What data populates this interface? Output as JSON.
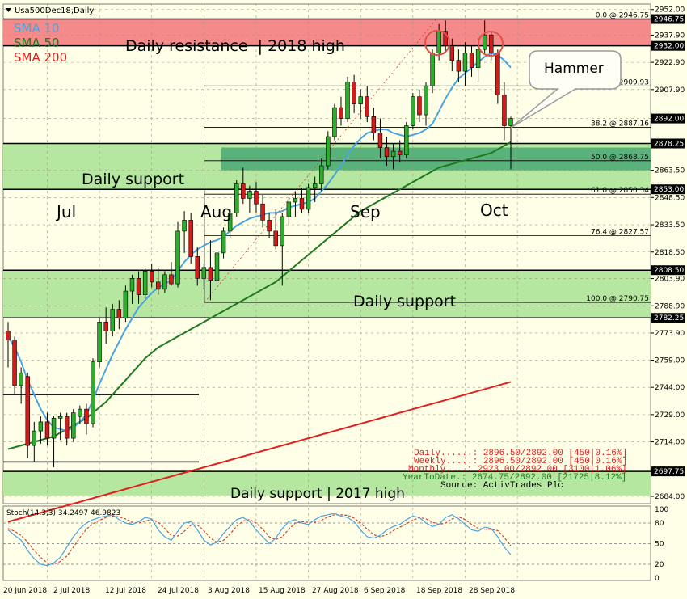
{
  "window": {
    "symbol": "Usa500Dec18,Daily"
  },
  "indicators": [
    {
      "label": "SMA 10",
      "color": "#4aa3df"
    },
    {
      "label": "SMA 50",
      "color": "#1f7a1f"
    },
    {
      "label": "SMA 200",
      "color": "#e02020"
    }
  ],
  "zones": {
    "resistance": {
      "label": "Daily resistance  | 2018 high",
      "from": 2932.0,
      "to": 2946.75,
      "color": "#f58a8a"
    },
    "support_aug": {
      "label": "Daily support",
      "from": 2853.0,
      "to": 2878.25,
      "color": "#b6e7a0"
    },
    "support_jul": {
      "label": "Daily support",
      "from": 2782.25,
      "to": 2808.5,
      "color": "#b6e7a0"
    },
    "support_2017": {
      "label": "Daily support | 2017 high",
      "from": 2684.5,
      "to": 2697.75,
      "color": "#b6e7a0"
    },
    "dark_support": {
      "from": 2863.5,
      "to": 2876.0,
      "color": "#4aa874"
    }
  },
  "month_labels": [
    "Jul",
    "Aug",
    "Sep",
    "Oct"
  ],
  "annotation": {
    "callout": "Hammer"
  },
  "fib_levels": [
    {
      "label": "0.0 @ 2946.75",
      "value": 2946.75
    },
    {
      "label": "23.6 @ 2909.93",
      "value": 2909.93
    },
    {
      "label": "38.2 @ 2887.16",
      "value": 2887.16
    },
    {
      "label": "50.0 @ 2868.75",
      "value": 2868.75
    },
    {
      "label": "61.8 @ 2850.34",
      "value": 2850.34
    },
    {
      "label": "76.4 @ 2827.57",
      "value": 2827.57
    },
    {
      "label": "100.0 @ 2790.75",
      "value": 2790.75
    }
  ],
  "stats": {
    "lines": [
      "Daily......: 2896.50/2892.00 [450|0.16%]",
      "Weekly.....: 2896.50/2892.00 [450|0.16%]",
      "Monthly....: 2923.00/2892.00 [3100|1.06%]",
      "YearToDate.: 2674.75/2892.00 [21725|8.12%]"
    ],
    "source": "Source: ActivTrades Plc"
  },
  "price_axis": {
    "ticks": [
      "2952.00",
      "2937.90",
      "2922.90",
      "2907.90",
      "2892.00",
      "2878.25",
      "2863.50",
      "2853.00",
      "2848.50",
      "2833.50",
      "2818.50",
      "2808.50",
      "2803.90",
      "2788.90",
      "2782.25",
      "2773.90",
      "2759.00",
      "2744.00",
      "2729.00",
      "2714.00",
      "2697.75",
      "2684.00"
    ],
    "highlight": [
      {
        "label": "2946.75",
        "value": 2946.75,
        "color": "#000000"
      },
      {
        "label": "2932.00",
        "value": 2932.0,
        "color": "#000000"
      },
      {
        "label": "2892.00",
        "value": 2892.0,
        "color": "#000000"
      },
      {
        "label": "2878.25",
        "value": 2878.25,
        "color": "#000000"
      },
      {
        "label": "2853.00",
        "value": 2853.0,
        "color": "#000000"
      },
      {
        "label": "2808.50",
        "value": 2808.5,
        "color": "#000000"
      },
      {
        "label": "2782.25",
        "value": 2782.25,
        "color": "#000000"
      },
      {
        "label": "2697.75",
        "value": 2697.75,
        "color": "#000000"
      }
    ]
  },
  "oscillator": {
    "label": "Stoch(14,3,3) 34.2497 46.9823",
    "levels": [
      "100",
      "80",
      "50",
      "20",
      "0"
    ]
  },
  "time_axis": [
    "20 Jun 2018",
    "2 Jul 2018",
    "12 Jul 2018",
    "24 Jul 2018",
    "3 Aug 2018",
    "15 Aug 2018",
    "27 Aug 2018",
    "6 Sep 2018",
    "18 Sep 2018",
    "28 Sep 2018"
  ],
  "chart_data": {
    "type": "candlestick",
    "ylim": [
      2680,
      2955
    ],
    "candles": [
      [
        2775,
        2780,
        2755,
        2770
      ],
      [
        2770,
        2772,
        2740,
        2745
      ],
      [
        2745,
        2755,
        2735,
        2752
      ],
      [
        2750,
        2752,
        2705,
        2712
      ],
      [
        2712,
        2725,
        2703,
        2720
      ],
      [
        2720,
        2728,
        2713,
        2725
      ],
      [
        2725,
        2730,
        2712,
        2716
      ],
      [
        2716,
        2728,
        2700,
        2727
      ],
      [
        2727,
        2730,
        2715,
        2728
      ],
      [
        2728,
        2730,
        2712,
        2716
      ],
      [
        2716,
        2732,
        2714,
        2730
      ],
      [
        2728,
        2734,
        2724,
        2732
      ],
      [
        2732,
        2735,
        2718,
        2724
      ],
      [
        2724,
        2760,
        2722,
        2758
      ],
      [
        2758,
        2782,
        2755,
        2780
      ],
      [
        2780,
        2788,
        2768,
        2775
      ],
      [
        2775,
        2790,
        2772,
        2787
      ],
      [
        2787,
        2792,
        2776,
        2782
      ],
      [
        2782,
        2800,
        2780,
        2797
      ],
      [
        2797,
        2806,
        2790,
        2804
      ],
      [
        2804,
        2808,
        2790,
        2795
      ],
      [
        2795,
        2810,
        2793,
        2808
      ],
      [
        2808,
        2812,
        2799,
        2802
      ],
      [
        2802,
        2810,
        2795,
        2798
      ],
      [
        2798,
        2808,
        2796,
        2806
      ],
      [
        2806,
        2813,
        2800,
        2801
      ],
      [
        2801,
        2835,
        2799,
        2830
      ],
      [
        2830,
        2841,
        2818,
        2836
      ],
      [
        2836,
        2840,
        2812,
        2816
      ],
      [
        2816,
        2821,
        2800,
        2804
      ],
      [
        2804,
        2812,
        2798,
        2810
      ],
      [
        2810,
        2825,
        2792,
        2803
      ],
      [
        2803,
        2820,
        2801,
        2818
      ],
      [
        2818,
        2832,
        2815,
        2830
      ],
      [
        2830,
        2842,
        2826,
        2840
      ],
      [
        2840,
        2858,
        2838,
        2856
      ],
      [
        2856,
        2865,
        2845,
        2848
      ],
      [
        2848,
        2855,
        2840,
        2852
      ],
      [
        2852,
        2857,
        2840,
        2845
      ],
      [
        2845,
        2850,
        2832,
        2836
      ],
      [
        2836,
        2840,
        2826,
        2830
      ],
      [
        2830,
        2842,
        2820,
        2822
      ],
      [
        2822,
        2840,
        2800,
        2838
      ],
      [
        2838,
        2848,
        2834,
        2846
      ],
      [
        2846,
        2852,
        2838,
        2848
      ],
      [
        2848,
        2854,
        2840,
        2842
      ],
      [
        2842,
        2856,
        2840,
        2854
      ],
      [
        2854,
        2860,
        2846,
        2856
      ],
      [
        2856,
        2870,
        2852,
        2866
      ],
      [
        2866,
        2885,
        2864,
        2882
      ],
      [
        2882,
        2900,
        2880,
        2898
      ],
      [
        2898,
        2904,
        2888,
        2892
      ],
      [
        2892,
        2915,
        2890,
        2912
      ],
      [
        2912,
        2916,
        2895,
        2900
      ],
      [
        2900,
        2908,
        2892,
        2904
      ],
      [
        2904,
        2910,
        2890,
        2893
      ],
      [
        2893,
        2898,
        2880,
        2884
      ],
      [
        2884,
        2892,
        2870,
        2876
      ],
      [
        2876,
        2882,
        2866,
        2871
      ],
      [
        2871,
        2878,
        2864,
        2874
      ],
      [
        2874,
        2880,
        2868,
        2872
      ],
      [
        2872,
        2890,
        2870,
        2888
      ],
      [
        2888,
        2906,
        2886,
        2904
      ],
      [
        2904,
        2908,
        2890,
        2894
      ],
      [
        2894,
        2912,
        2888,
        2910
      ],
      [
        2910,
        2930,
        2906,
        2928
      ],
      [
        2928,
        2944,
        2924,
        2940
      ],
      [
        2940,
        2946,
        2928,
        2932
      ],
      [
        2932,
        2936,
        2918,
        2924
      ],
      [
        2924,
        2930,
        2912,
        2918
      ],
      [
        2918,
        2934,
        2910,
        2928
      ],
      [
        2928,
        2932,
        2915,
        2920
      ],
      [
        2920,
        2936,
        2912,
        2930
      ],
      [
        2930,
        2946,
        2928,
        2938
      ],
      [
        2938,
        2940,
        2924,
        2928
      ],
      [
        2928,
        2930,
        2900,
        2905
      ],
      [
        2905,
        2912,
        2880,
        2888
      ],
      [
        2888,
        2893,
        2864,
        2892
      ]
    ],
    "sma10": [
      2772,
      2766,
      2758,
      2748,
      2740,
      2732,
      2726,
      2722,
      2721,
      2720,
      2722,
      2725,
      2729,
      2737,
      2746,
      2754,
      2762,
      2769,
      2776,
      2782,
      2788,
      2792,
      2796,
      2799,
      2801,
      2803,
      2808,
      2813,
      2817,
      2820,
      2822,
      2824,
      2825,
      2827,
      2830,
      2833,
      2835,
      2837,
      2838,
      2839,
      2840,
      2840,
      2841,
      2843,
      2844,
      2845,
      2846,
      2848,
      2852,
      2856,
      2861,
      2866,
      2872,
      2877,
      2881,
      2884,
      2885,
      2886,
      2886,
      2884,
      2883,
      2882,
      2883,
      2884,
      2886,
      2889,
      2896,
      2903,
      2909,
      2914,
      2917,
      2920,
      2923,
      2926,
      2928,
      2927,
      2924,
      2920
    ],
    "sma50": [
      2710,
      2711,
      2712,
      2713,
      2714,
      2715,
      2716,
      2717,
      2719,
      2721,
      2723,
      2725,
      2727,
      2730,
      2733,
      2736,
      2740,
      2744,
      2748,
      2752,
      2756,
      2760,
      2763,
      2766,
      2768,
      2770,
      2772,
      2774,
      2776,
      2778,
      2780,
      2782,
      2784,
      2786,
      2788,
      2790,
      2792,
      2794,
      2796,
      2798,
      2800,
      2802,
      2805,
      2808,
      2811,
      2814,
      2817,
      2820,
      2823,
      2826,
      2829,
      2832,
      2835,
      2838,
      2841,
      2843,
      2845,
      2847,
      2849,
      2851,
      2853,
      2855,
      2857,
      2859,
      2861,
      2863,
      2865,
      2866,
      2867,
      2868,
      2869,
      2870,
      2871,
      2872,
      2873,
      2875,
      2877,
      2879
    ],
    "sma200": [
      2670,
      2671,
      2672,
      2673,
      2674,
      2675,
      2676,
      2677,
      2678,
      2679,
      2680,
      2681,
      2682,
      2683,
      2684,
      2685,
      2686,
      2687,
      2688,
      2689,
      2690,
      2691,
      2692,
      2693,
      2694,
      2695,
      2696,
      2697,
      2698,
      2699,
      2700,
      2701,
      2702,
      2703,
      2704,
      2705,
      2706,
      2707,
      2708,
      2709,
      2710,
      2711,
      2712,
      2713,
      2714,
      2715,
      2716,
      2717,
      2718,
      2719,
      2720,
      2721,
      2722,
      2723,
      2724,
      2725,
      2726,
      2727,
      2728,
      2729,
      2730,
      2731,
      2732,
      2733,
      2734,
      2735,
      2736,
      2737,
      2738,
      2739,
      2740,
      2741,
      2742,
      2743,
      2744,
      2745,
      2746,
      2747
    ],
    "stoch_k": [
      70,
      62,
      55,
      40,
      28,
      20,
      18,
      22,
      30,
      45,
      60,
      72,
      80,
      85,
      88,
      90,
      92,
      85,
      80,
      78,
      82,
      88,
      86,
      70,
      60,
      55,
      68,
      80,
      82,
      70,
      55,
      48,
      52,
      65,
      75,
      85,
      88,
      82,
      70,
      60,
      50,
      58,
      72,
      82,
      85,
      80,
      78,
      85,
      90,
      92,
      94,
      90,
      88,
      82,
      70,
      60,
      58,
      62,
      70,
      75,
      78,
      85,
      90,
      88,
      80,
      75,
      78,
      88,
      92,
      86,
      78,
      70,
      68,
      74,
      72,
      60,
      45,
      34
    ],
    "stoch_d": [
      72,
      68,
      62,
      52,
      40,
      30,
      22,
      20,
      24,
      32,
      45,
      59,
      71,
      79,
      84,
      88,
      90,
      89,
      86,
      81,
      80,
      83,
      85,
      81,
      72,
      62,
      61,
      68,
      77,
      77,
      69,
      58,
      52,
      55,
      64,
      75,
      83,
      85,
      80,
      71,
      60,
      56,
      60,
      71,
      80,
      82,
      81,
      81,
      84,
      89,
      92,
      92,
      91,
      87,
      80,
      71,
      63,
      60,
      63,
      69,
      74,
      79,
      84,
      88,
      86,
      81,
      78,
      80,
      86,
      89,
      85,
      78,
      72,
      71,
      71,
      69,
      59,
      47
    ]
  }
}
